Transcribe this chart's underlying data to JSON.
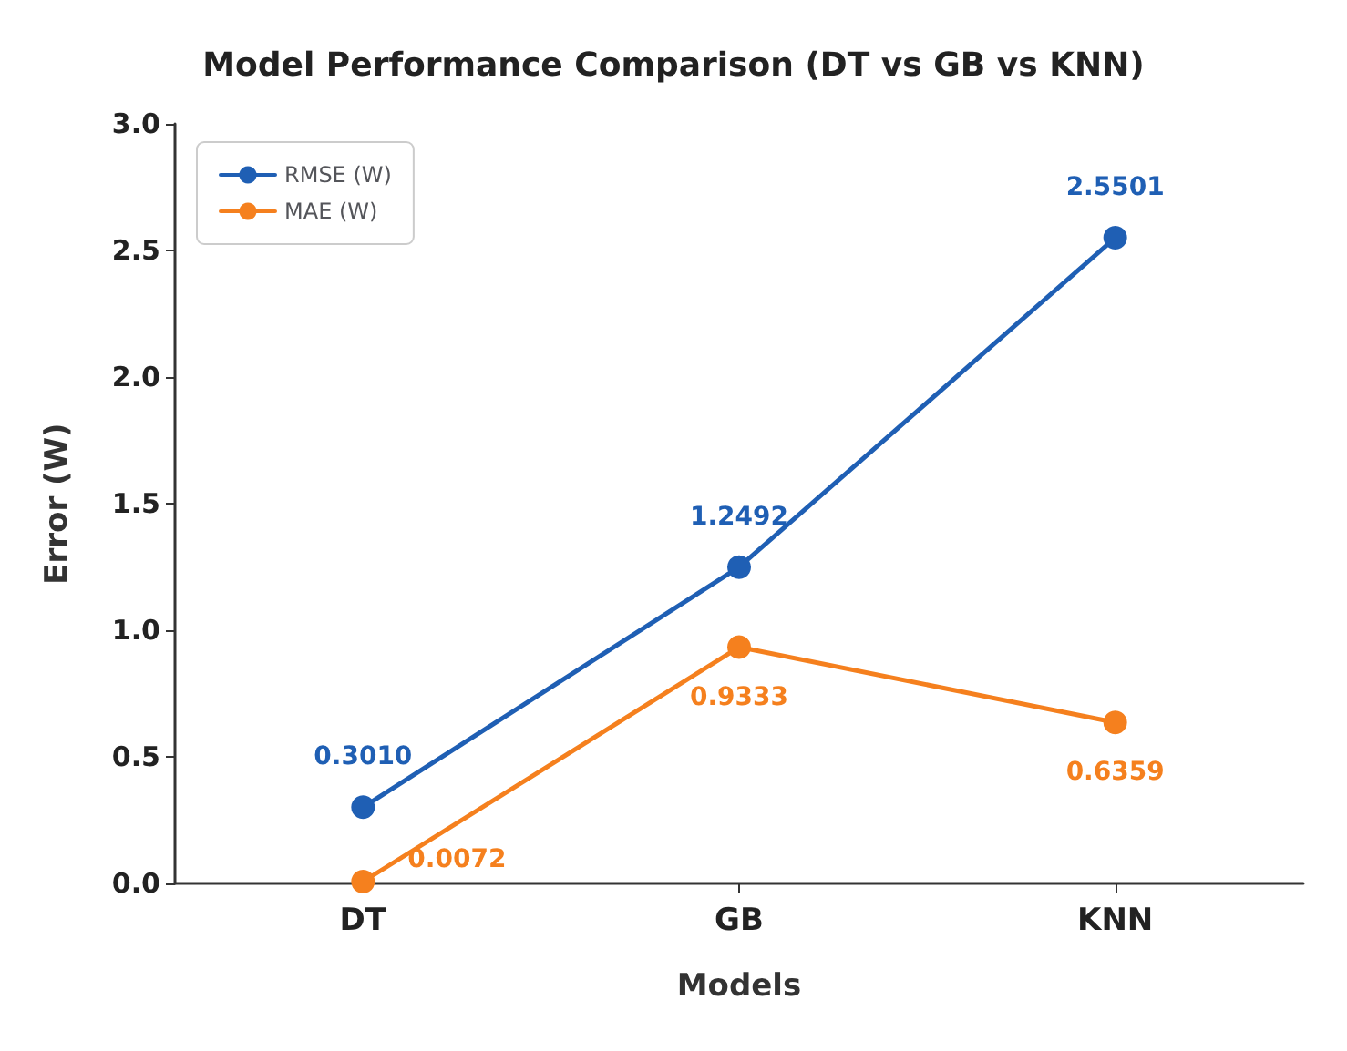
{
  "chart_data": {
    "type": "line",
    "title": "Model Performance Comparison (DT vs GB vs KNN)",
    "xlabel": "Models",
    "ylabel": "Error (W)",
    "categories": [
      "DT",
      "GB",
      "KNN"
    ],
    "series": [
      {
        "name": "RMSE (W)",
        "color": "#1f5fb4",
        "values": [
          0.301,
          1.2492,
          2.5501
        ],
        "value_labels": [
          "0.3010",
          "1.2492",
          "2.5501"
        ]
      },
      {
        "name": "MAE (W)",
        "color": "#f5801e",
        "values": [
          0.0072,
          0.9333,
          0.6359
        ],
        "value_labels": [
          "0.0072",
          "0.9333",
          "0.6359"
        ]
      }
    ],
    "ylim": [
      0,
      3
    ],
    "yticks": [
      {
        "value": 0,
        "label": "0.0"
      },
      {
        "value": 0.5,
        "label": "0.5"
      },
      {
        "value": 1,
        "label": "1.0"
      },
      {
        "value": 1.5,
        "label": "1.5"
      },
      {
        "value": 2,
        "label": "2.0"
      },
      {
        "value": 2.5,
        "label": "2.5"
      },
      {
        "value": 3,
        "label": "3.0"
      }
    ],
    "grid": false,
    "legend": "top left",
    "marker": "circle",
    "line_style": "solid"
  }
}
